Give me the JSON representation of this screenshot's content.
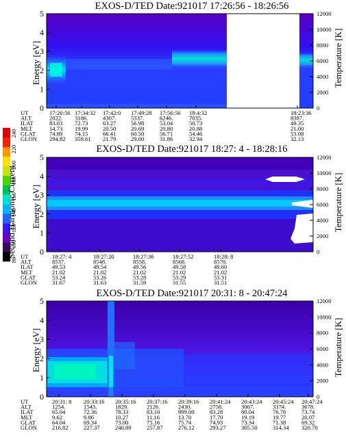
{
  "figure": "EXOS-D/TED spectrogram panels",
  "colorbar": {
    "label": "Second Harmonic Current",
    "tick_labels": [
      "80",
      "100",
      "120",
      "140",
      "160",
      "180",
      "200",
      "220",
      "240"
    ],
    "colors": [
      "#000000",
      "#3a0a5a",
      "#6a00c0",
      "#3a18ff",
      "#1e64ff",
      "#00b4ff",
      "#00e6d2",
      "#00c45a",
      "#48d800",
      "#c8e400",
      "#ffe000",
      "#ff9600",
      "#ff2000",
      "#e00000"
    ]
  },
  "chart_data": [
    {
      "type": "heatmap",
      "title": "EXOS-D/TED   Date:921017  17:26:56 - 18:26:56",
      "ylabel": "Energy [eV]",
      "ylabel_right": "Temperature [K]",
      "ylim": [
        0,
        5
      ],
      "y2lim": [
        0,
        12000
      ],
      "yticks": [
        "0",
        "1",
        "2",
        "3",
        "4",
        "5"
      ],
      "y2ticks": [
        "0",
        "2000",
        "4000",
        "6000",
        "8000",
        "10000",
        "12000"
      ],
      "data_gap": [
        "18:26:56",
        "18:30:00"
      ],
      "ephemeris": {
        "row_labels": [
          "UT",
          "ALT",
          "ILAT",
          "MLT",
          "GLAT",
          "GLON"
        ],
        "columns": [
          [
            "17:26:56",
            "2022.",
            "83.03",
            "14.73",
            "74.89",
            "294.82"
          ],
          [
            "17:34:32",
            "3186.",
            "72.73",
            "19.99",
            "74.15",
            "359.61"
          ],
          [
            "17:42:0",
            "4307.",
            "63.27",
            "20.50",
            "66.41",
            "21.79"
          ],
          [
            "17:49:28",
            "5337.",
            "56.98",
            "20.69",
            "60.50",
            "29.00"
          ],
          [
            "17:56:56",
            "6246.",
            "53.04",
            "20.80",
            "56.71",
            "31.86"
          ],
          [
            "18:4:32",
            "7035.",
            "50.73",
            "20.88",
            "54.46",
            "32.94"
          ],
          [
            "18:23:36",
            "8387.",
            "49.35",
            "21.00",
            "53.08",
            "32.13"
          ]
        ]
      },
      "bands": [
        {
          "time_range": [
            "17:26:56",
            "17:30:00"
          ],
          "center_ev": 2.1,
          "peak_level": 180
        },
        {
          "time_range": [
            "17:30:00",
            "17:56:00"
          ],
          "center_ev": 2.5,
          "peak_level": 110
        },
        {
          "time_range": [
            "17:56:00",
            "18:26:00"
          ],
          "center_ev": 2.6,
          "peak_level": 160
        },
        {
          "time_range": [
            "18:30:00",
            "18:33:36"
          ],
          "center_ev": 2.4,
          "peak_level": 160
        }
      ]
    },
    {
      "type": "heatmap",
      "title": "EXOS-D/TED   Date:921017  18:27: 4 - 18:28:16",
      "ylabel": "Energy [eV]",
      "ylabel_right": "Temperature [K]",
      "ylim": [
        0,
        5
      ],
      "y2lim": [
        0,
        12000
      ],
      "yticks": [
        "0",
        "1",
        "2",
        "3",
        "4",
        "5"
      ],
      "y2ticks": [
        "0",
        "2000",
        "4000",
        "6000",
        "8000",
        "10000",
        "12000"
      ],
      "ephemeris": {
        "row_labels": [
          "UT",
          "ALT",
          "ILAT",
          "MLT",
          "GLAT",
          "GLON"
        ],
        "columns": [
          [
            "18:27: 4",
            "8537.",
            "49.53",
            "21.02",
            "53.24",
            "31.67"
          ],
          [
            "18:27:20",
            "8548.",
            "49.54",
            "21.02",
            "53.26",
            "31.63"
          ],
          [
            "18:27:36",
            "8558.",
            "49.56",
            "21.02",
            "53.28",
            "31.59"
          ],
          [
            "18:27:52",
            "8568.",
            "49.58",
            "21.02",
            "53.29",
            "31.55"
          ],
          [
            "18:28: 8",
            "8578.",
            "49.60",
            "21.02",
            "53.31",
            "31.51"
          ]
        ]
      },
      "bands": [
        {
          "time_range": [
            "18:27:04",
            "18:28:16"
          ],
          "center_ev": 2.6,
          "peak_level": 160
        },
        {
          "time_range": [
            "18:27:04",
            "18:28:16"
          ],
          "center_ev": 4.1,
          "peak_level": 110
        }
      ]
    },
    {
      "type": "heatmap",
      "title": "EXOS-D/TED   Date:921017  20:31: 8 - 20:47:24",
      "ylabel": "Energy [eV]",
      "ylabel_right": "Temperature [K]",
      "ylim": [
        0,
        5
      ],
      "y2lim": [
        0,
        12000
      ],
      "yticks": [
        "0",
        "1",
        "2",
        "3",
        "4",
        "5"
      ],
      "y2ticks": [
        "0",
        "2000",
        "4000",
        "6000",
        "8000",
        "10000",
        "12000"
      ],
      "ephemeris": {
        "row_labels": [
          "UT",
          "ALT",
          "ILAT",
          "MLT",
          "GLAT",
          "GLON"
        ],
        "columns": [
          [
            "20:31: 8",
            "1254.",
            "65.04",
            "9.62",
            "64.04",
            "216.82"
          ],
          [
            "20:33:16",
            "1543.",
            "72.36",
            "9.86",
            "69.34",
            "227.37"
          ],
          [
            "20:35:16",
            "1829.",
            "78.33",
            "10.27",
            "73.00",
            "240.89"
          ],
          [
            "20:37:16",
            "2126.",
            "83.10",
            "11.16",
            "75.16",
            "257.87"
          ],
          [
            "20:39:16",
            "2430.",
            "999.00",
            "13.70",
            "75.74",
            "276.12"
          ],
          [
            "20:41:24",
            "2758.",
            "83.28",
            "17.70",
            "74.93",
            "293.27"
          ],
          [
            "20:43:24",
            "3067.",
            "80.04",
            "19.19",
            "73.34",
            "305.50"
          ],
          [
            "20:45:24",
            "3374.",
            "76.78",
            "19.77",
            "71.38",
            "314.34"
          ],
          [
            "20:47:24",
            "3678.",
            "73.74",
            "20.07",
            "69.32",
            "320.70"
          ]
        ]
      },
      "bands": [
        {
          "time_range": [
            "20:31:08",
            "20:35:16"
          ],
          "center_ev": 1.8,
          "peak_level": 180
        },
        {
          "time_range": [
            "20:35:16",
            "20:47:24"
          ],
          "center_ev": 1.2,
          "peak_level": 140
        }
      ]
    }
  ]
}
